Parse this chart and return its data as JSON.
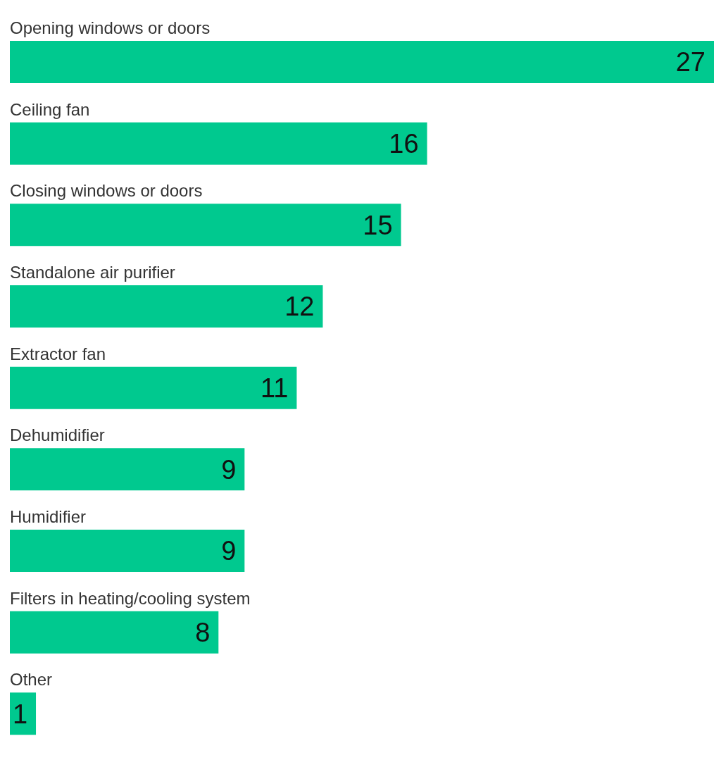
{
  "chart_data": {
    "type": "bar",
    "orientation": "horizontal",
    "categories": [
      "Opening windows or doors",
      "Ceiling fan",
      "Closing windows or doors",
      "Standalone air purifier",
      "Extractor fan",
      "Dehumidifier",
      "Humidifier",
      "Filters in heating/cooling system",
      "Other"
    ],
    "values": [
      27,
      16,
      15,
      12,
      11,
      9,
      9,
      8,
      1
    ],
    "color": "#00c98f",
    "data_labels": true,
    "grid": false
  }
}
